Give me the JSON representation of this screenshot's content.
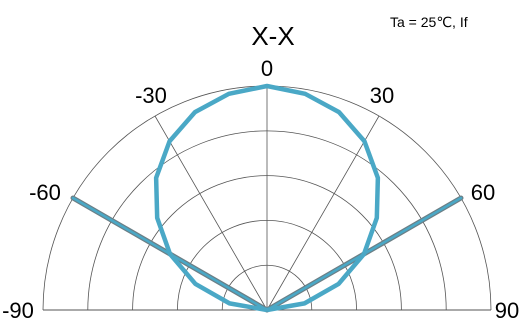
{
  "chart_data": {
    "type": "line",
    "subtype": "polar-half",
    "title": "X-X",
    "annotation": "Ta = 25℃, If",
    "theta_range": [
      -90,
      90
    ],
    "r_range": [
      0,
      1
    ],
    "theta_ticks": [
      -90,
      -60,
      -30,
      0,
      30,
      60,
      90
    ],
    "theta_tick_labels": [
      "-90",
      "-60",
      "-30",
      "0",
      "30",
      "60",
      "90"
    ],
    "grid": true,
    "series": [
      {
        "color": "#4aa8c6",
        "points": [
          {
            "theta": -90,
            "r": 0.0
          },
          {
            "theta": -80,
            "r": 0.17
          },
          {
            "theta": -70,
            "r": 0.34
          },
          {
            "theta": -60,
            "r": 0.5
          },
          {
            "theta": -50,
            "r": 0.64
          },
          {
            "theta": -40,
            "r": 0.77
          },
          {
            "theta": -30,
            "r": 0.87
          },
          {
            "theta": -20,
            "r": 0.94
          },
          {
            "theta": -10,
            "r": 0.98
          },
          {
            "theta": 0,
            "r": 1.0
          },
          {
            "theta": 10,
            "r": 0.98
          },
          {
            "theta": 20,
            "r": 0.94
          },
          {
            "theta": 30,
            "r": 0.87
          },
          {
            "theta": 40,
            "r": 0.77
          },
          {
            "theta": 50,
            "r": 0.64
          },
          {
            "theta": 60,
            "r": 0.5
          },
          {
            "theta": 70,
            "r": 0.34
          },
          {
            "theta": 80,
            "r": 0.17
          },
          {
            "theta": 90,
            "r": 0.0
          }
        ]
      }
    ],
    "reference_lines": [
      {
        "theta": -60,
        "r": [
          0,
          1
        ],
        "color": "#4aa8c6"
      },
      {
        "theta": 60,
        "r": [
          0,
          1
        ],
        "color": "#4aa8c6"
      }
    ]
  },
  "colors": {
    "grid": "#555555",
    "curve": "#4aa8c6",
    "ref_edge": "#6b7f86",
    "text": "#000000"
  }
}
